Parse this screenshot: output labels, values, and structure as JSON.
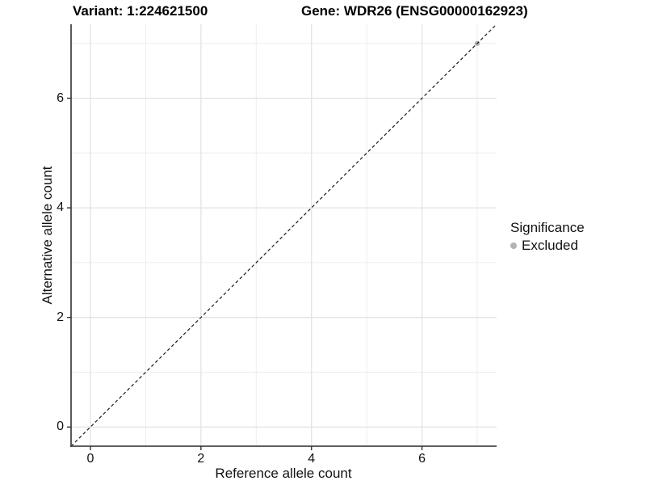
{
  "chart_data": {
    "type": "scatter",
    "title": "Variant: 1:224621500    Gene: WDR26 (ENSG00000162923)",
    "title_left": "Variant: 1:224621500",
    "title_right": "Gene: WDR26 (ENSG00000162923)",
    "xlabel": "Reference allele count",
    "ylabel": "Alternative allele count",
    "xlim": [
      -0.35,
      7.35
    ],
    "ylim": [
      -0.35,
      7.35
    ],
    "x_ticks": [
      0,
      2,
      4,
      6
    ],
    "y_ticks": [
      0,
      2,
      4,
      6
    ],
    "x_minor_ticks": [
      1,
      3,
      5,
      7
    ],
    "y_minor_ticks": [
      1,
      3,
      5,
      7
    ],
    "grid": true,
    "series": [
      {
        "name": "Excluded",
        "color": "#b3b3b3",
        "points": [
          {
            "x": 7,
            "y": 7
          }
        ]
      }
    ],
    "reference_line": {
      "type": "identity",
      "slope": 1,
      "intercept": 0,
      "style": "dashed",
      "color": "#1a1a1a"
    },
    "legend": {
      "title": "Significance",
      "position": "right",
      "items": [
        {
          "label": "Excluded",
          "color": "#b3b3b3"
        }
      ]
    },
    "colors": {
      "background": "#ffffff",
      "grid_major": "#e3e3e3",
      "grid_minor": "#ededed",
      "axis_line": "#474747",
      "tick_mark": "#333333",
      "text": "#111111"
    }
  }
}
